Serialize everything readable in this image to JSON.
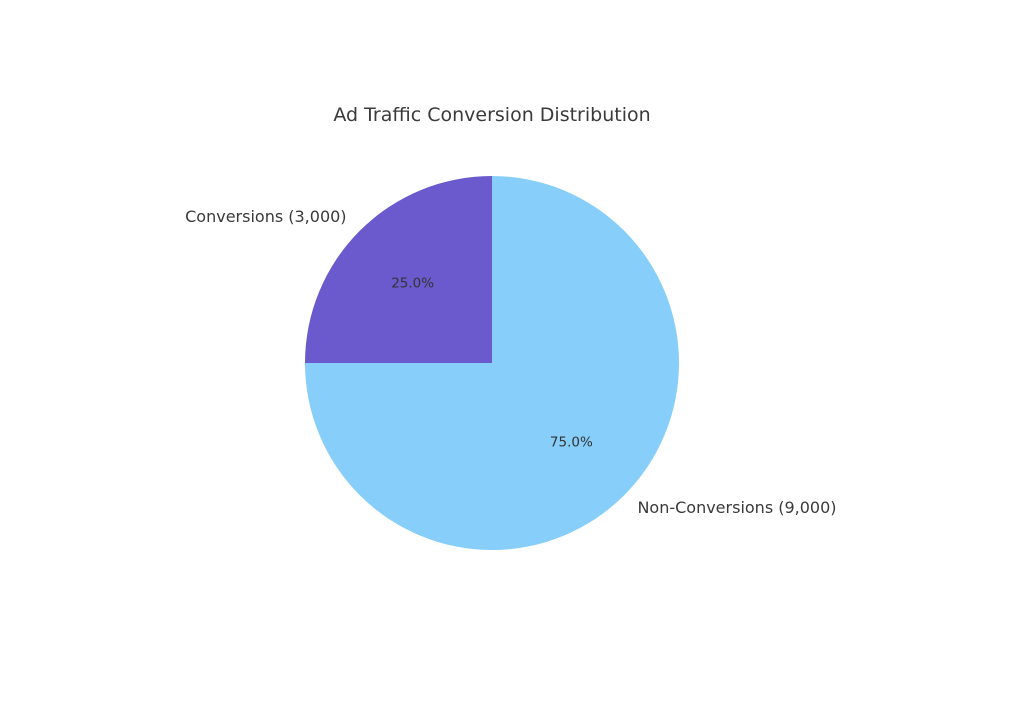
{
  "chart_data": {
    "type": "pie",
    "title": "Ad Traffic Conversion Distribution",
    "categories": [
      "Conversions",
      "Non-Conversions"
    ],
    "values": [
      3000,
      9000
    ],
    "slice_labels": [
      "Conversions (3,000)",
      "Non-Conversions (9,000)"
    ],
    "percent_labels": [
      "25.0%",
      "75.0%"
    ],
    "colors": [
      "#6a5acd",
      "#87cefa"
    ],
    "start_angle_deg": 90,
    "direction": "counterclockwise"
  }
}
